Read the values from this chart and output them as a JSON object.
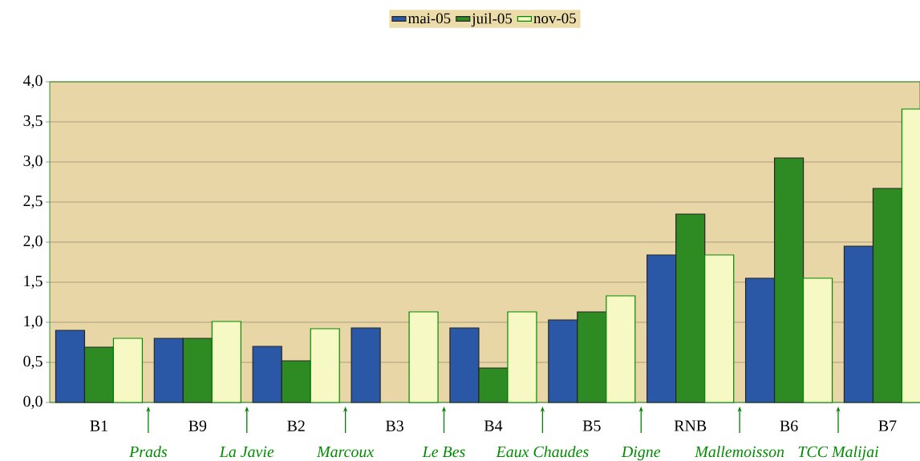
{
  "chart_data": {
    "type": "bar",
    "categories": [
      "B1",
      "B9",
      "B2",
      "B3",
      "B4",
      "B5",
      "RNB",
      "B6",
      "B7"
    ],
    "series": [
      {
        "name": "mai-05",
        "color": "#2a58a6",
        "values": [
          0.9,
          0.8,
          0.7,
          0.93,
          0.93,
          1.03,
          1.84,
          1.55,
          1.95
        ]
      },
      {
        "name": "juil-05",
        "color": "#2e8a22",
        "values": [
          0.69,
          0.8,
          0.52,
          null,
          0.43,
          1.13,
          2.35,
          3.05,
          2.67
        ]
      },
      {
        "name": "nov-05",
        "color": "#f6f9c4",
        "values": [
          0.8,
          1.01,
          0.92,
          1.13,
          1.13,
          1.33,
          1.84,
          1.55,
          3.66
        ]
      }
    ],
    "ylim": [
      0,
      4
    ],
    "yticks": [
      {
        "value": 0,
        "label": "0,0"
      },
      {
        "value": 0.5,
        "label": "0,5"
      },
      {
        "value": 1,
        "label": "1,0"
      },
      {
        "value": 1.5,
        "label": "1,5"
      },
      {
        "value": 2,
        "label": "2,0"
      },
      {
        "value": 2.5,
        "label": "2,5"
      },
      {
        "value": 3,
        "label": "3,0"
      },
      {
        "value": 3.5,
        "label": "3,5"
      },
      {
        "value": 4,
        "label": "4,0"
      }
    ],
    "grid": "y",
    "legend": "top",
    "annotations": [
      "Prads",
      "La Javie",
      "Marcoux",
      "Le Bes",
      "Eaux Chaudes",
      "Digne",
      "Mallemoisson",
      "TCC Malijai"
    ]
  }
}
